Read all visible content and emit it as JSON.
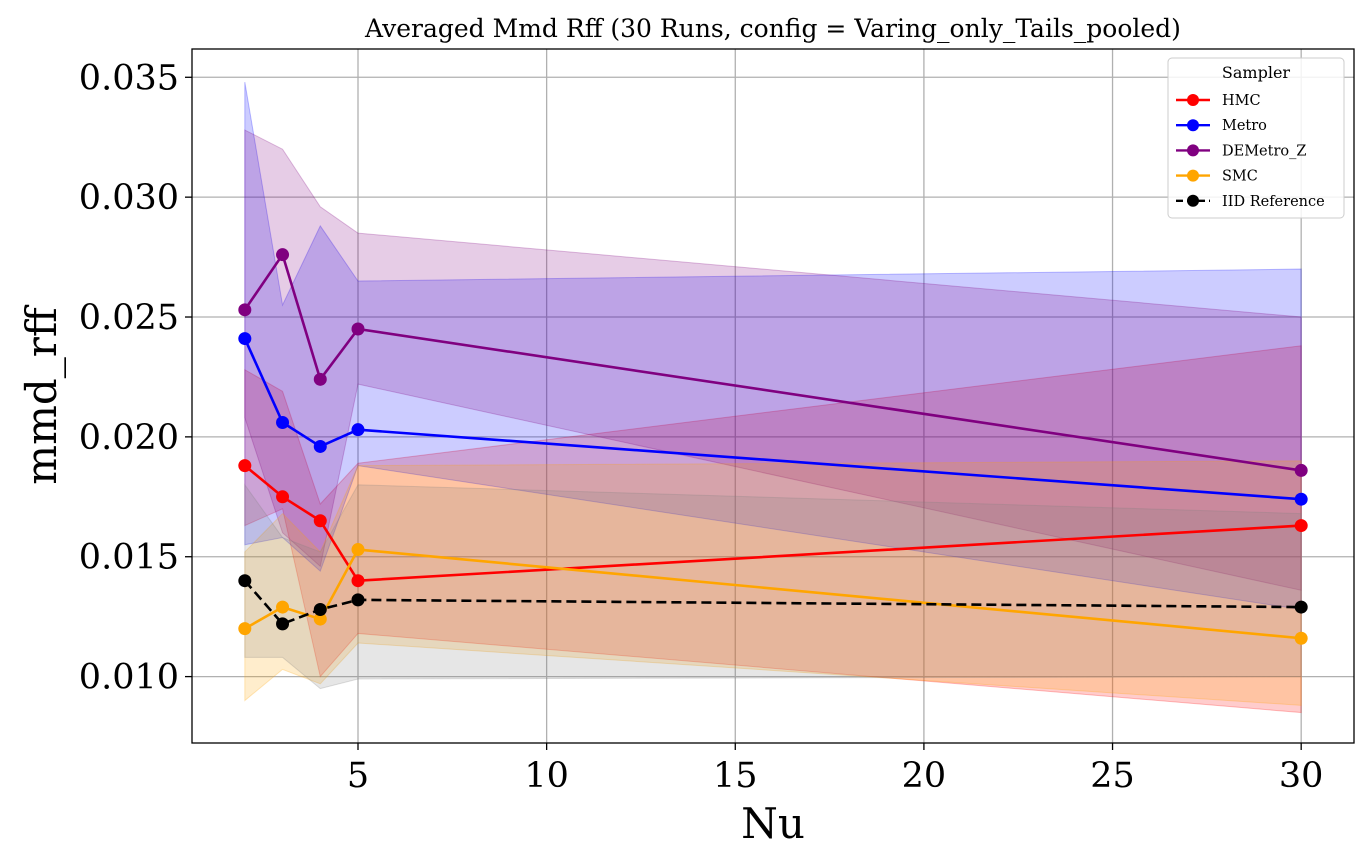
{
  "chart_data": {
    "type": "line",
    "title": "Averaged Mmd Rff (30 Runs, config = Varing_only_Tails_pooled)",
    "xlabel": "Nu",
    "ylabel": "mmd_rff",
    "xlim": [
      0.6,
      31.4
    ],
    "ylim": [
      0.00723,
      0.03618
    ],
    "xticks": [
      5,
      10,
      15,
      20,
      25,
      30
    ],
    "xtick_labels": [
      "5",
      "10",
      "15",
      "20",
      "25",
      "30"
    ],
    "yticks": [
      0.01,
      0.015,
      0.02,
      0.025,
      0.03,
      0.035
    ],
    "ytick_labels": [
      "0.010",
      "0.015",
      "0.020",
      "0.025",
      "0.030",
      "0.035"
    ],
    "grid": true,
    "legend": {
      "title": "Sampler",
      "position": "top-right"
    },
    "x": [
      2,
      3,
      4,
      5,
      30
    ],
    "series": [
      {
        "name": "HMC",
        "color": "#ff0000",
        "band_color": "#ff0000",
        "dashed": false,
        "values": [
          0.0188,
          0.0175,
          0.0165,
          0.014,
          0.0163
        ],
        "lower": [
          0.0163,
          0.017,
          0.01,
          0.0118,
          0.0085
        ],
        "upper": [
          0.0228,
          0.0219,
          0.0172,
          0.0189,
          0.0238
        ]
      },
      {
        "name": "Metro",
        "color": "#0000ff",
        "band_color": "#0000ff",
        "dashed": false,
        "values": [
          0.0241,
          0.0206,
          0.0196,
          0.0203,
          0.0174
        ],
        "lower": [
          0.0155,
          0.0158,
          0.0144,
          0.0188,
          0.0128
        ],
        "upper": [
          0.0348,
          0.0255,
          0.0288,
          0.0265,
          0.027
        ]
      },
      {
        "name": "DEMetro_Z",
        "color": "#800080",
        "band_color": "#800080",
        "dashed": false,
        "values": [
          0.0253,
          0.0276,
          0.0224,
          0.0245,
          0.0186
        ],
        "lower": [
          0.0208,
          0.016,
          0.0146,
          0.0222,
          0.0136
        ],
        "upper": [
          0.0328,
          0.032,
          0.0296,
          0.0285,
          0.025
        ]
      },
      {
        "name": "SMC",
        "color": "#ffa500",
        "band_color": "#ffa500",
        "dashed": false,
        "values": [
          0.012,
          0.0129,
          0.0124,
          0.0153,
          0.0116
        ],
        "lower": [
          0.009,
          0.0103,
          0.0097,
          0.0114,
          0.0088
        ],
        "upper": [
          0.0152,
          0.0168,
          0.0152,
          0.0188,
          0.019
        ]
      },
      {
        "name": "IID Reference",
        "color": "#000000",
        "band_color": "#808080",
        "dashed": true,
        "values": [
          0.014,
          0.0122,
          0.0128,
          0.0132,
          0.0129
        ],
        "lower": [
          0.0108,
          0.0108,
          0.0095,
          0.0099,
          0.01
        ],
        "upper": [
          0.018,
          0.0158,
          0.0152,
          0.018,
          0.0168
        ]
      }
    ]
  }
}
